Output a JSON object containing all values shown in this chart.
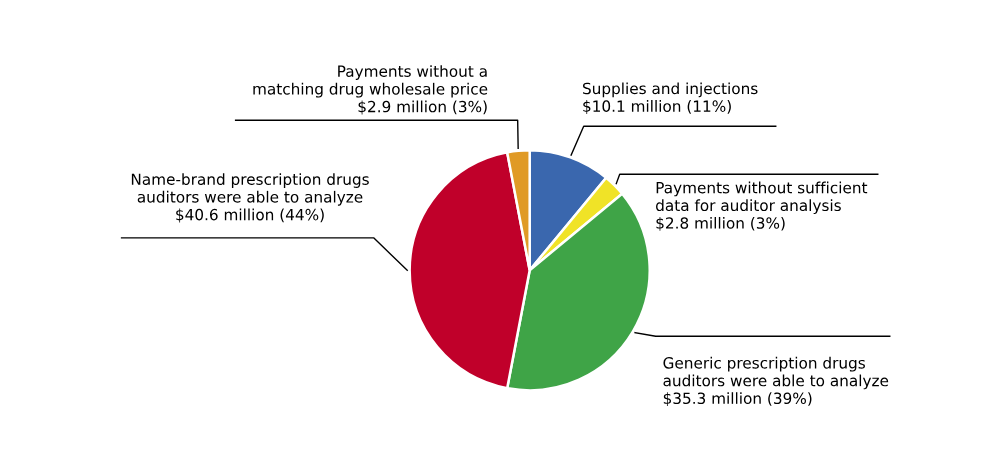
{
  "chart_data": {
    "type": "pie",
    "categories": [
      "Supplies and injections",
      "Payments without sufficient\ndata for auditor analysis",
      "Generic prescription drugs\nauditors were able to analyze",
      "Name-brand prescription drugs\nauditors were able to analyze",
      "Payments without a\nmatching drug wholesale price"
    ],
    "values": [
      11,
      3,
      39,
      44,
      3
    ],
    "value_labels": [
      "$10.1 million (11%)",
      "$2.8 million (3%)",
      "$35.3 million (39%)",
      "$40.6 million (44%)",
      "$2.9 million (3%)"
    ],
    "colors": [
      "#3a67ae",
      "#f0e327",
      "#3fa447",
      "#c0002a",
      "#e09a25"
    ]
  }
}
